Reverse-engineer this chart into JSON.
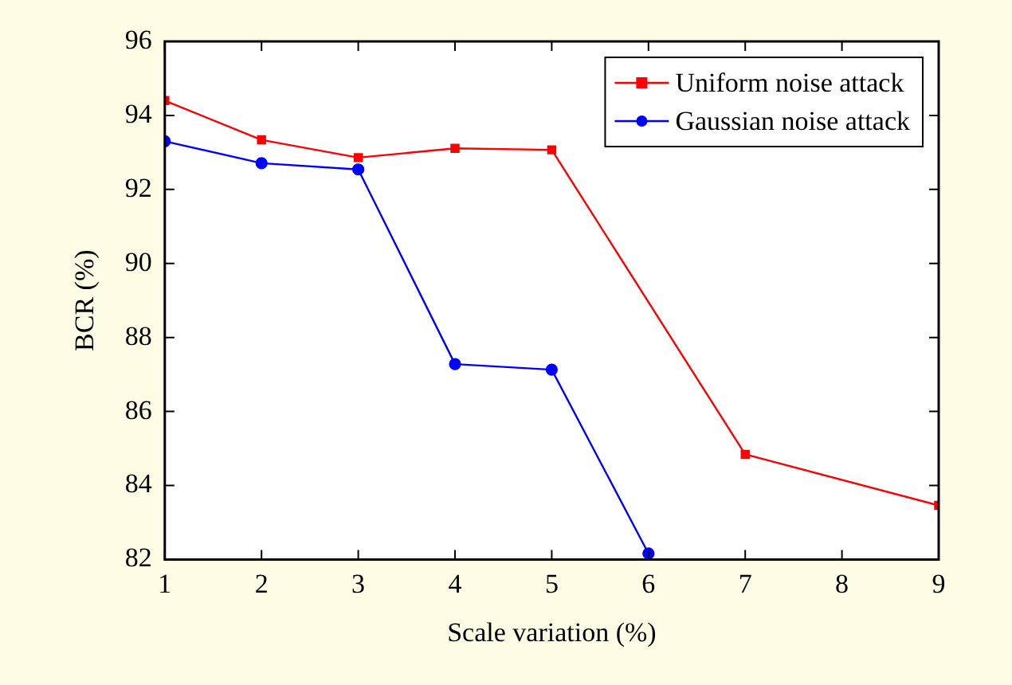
{
  "chart_data": {
    "type": "line",
    "xlabel": "Scale variation (%)",
    "ylabel": "BCR (%)",
    "xlim": [
      1,
      9
    ],
    "xticks": [
      1,
      2,
      3,
      4,
      5,
      6,
      7,
      8,
      9
    ],
    "ylim": [
      82,
      96
    ],
    "yticks": [
      82,
      84,
      86,
      88,
      90,
      92,
      94,
      96
    ],
    "grid": false,
    "legend": "top right",
    "series": [
      {
        "name": "Uniform noise attack",
        "color": "#ff0000",
        "marker": "square",
        "x": [
          1,
          2,
          3,
          4,
          5,
          7,
          9
        ],
        "values": [
          94.4,
          93.34,
          92.86,
          93.11,
          93.07,
          84.84,
          83.46
        ]
      },
      {
        "name": "Gaussian noise attack",
        "color": "#0000ff",
        "marker": "circle",
        "x": [
          1,
          2,
          3,
          4,
          5,
          6
        ],
        "values": [
          93.3,
          92.71,
          92.54,
          87.28,
          87.13,
          82.16
        ]
      }
    ]
  }
}
